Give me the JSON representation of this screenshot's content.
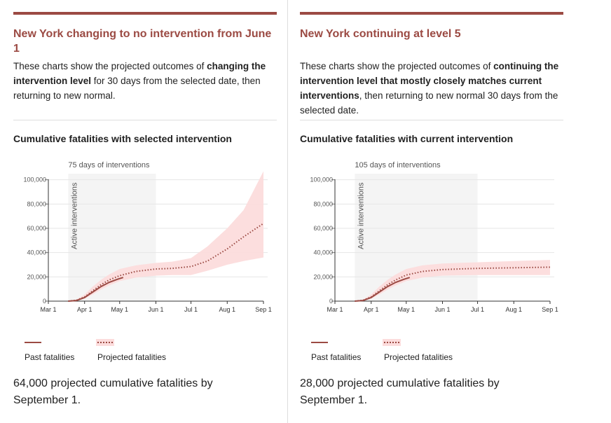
{
  "colors": {
    "accent": "#9b4a43",
    "band": "#fcdcdc",
    "active_shade": "#f4f4f4"
  },
  "panels": [
    {
      "title": "New York changing to no intervention from June 1",
      "desc": [
        {
          "t": "These charts show the projected outcomes of ",
          "b": false
        },
        {
          "t": "changing the intervention level",
          "b": true
        },
        {
          "t": " for 30 days from the selected date, then returning to new normal.",
          "b": false
        }
      ],
      "chart_title": "Cumulative fatalities with selected intervention",
      "days_label": "75 days of interventions",
      "active_label": "Active interventions",
      "legend_past": "Past fatalities",
      "legend_projected": "Projected fatalities",
      "summary": "64,000 projected cumulative fatalities by September 1."
    },
    {
      "title": "New York continuing at level 5",
      "desc": [
        {
          "t": "These charts show the projected outcomes of ",
          "b": false
        },
        {
          "t": "continuing the intervention level that mostly closely matches current interventions",
          "b": true
        },
        {
          "t": ", then returning to new normal 30 days from the selected date.",
          "b": false
        }
      ],
      "chart_title": "Cumulative fatalities with current intervention",
      "days_label": "105 days of interventions",
      "active_label": "Active interventions",
      "legend_past": "Past fatalities",
      "legend_projected": "Projected fatalities",
      "summary": "28,000 projected cumulative fatalities by September 1."
    }
  ],
  "chart_data": [
    {
      "type": "line",
      "title": "Cumulative fatalities with selected intervention",
      "x_ticks": [
        "Mar 1",
        "Apr 1",
        "May 1",
        "Jun 1",
        "Jul 1",
        "Aug 1",
        "Sep 1"
      ],
      "y_ticks": [
        "0",
        "20,000",
        "40,000",
        "60,000",
        "80,000",
        "100,000"
      ],
      "ylim": [
        0,
        105000
      ],
      "xlim": [
        "2020-03-01",
        "2020-09-01"
      ],
      "active_interventions": {
        "start": "2020-03-18",
        "end": "2020-06-01"
      },
      "series": [
        {
          "name": "Past fatalities",
          "style": "solid",
          "points": [
            [
              "2020-03-18",
              0
            ],
            [
              "2020-03-25",
              500
            ],
            [
              "2020-04-01",
              3000
            ],
            [
              "2020-04-08",
              7500
            ],
            [
              "2020-04-15",
              12000
            ],
            [
              "2020-04-22",
              15500
            ],
            [
              "2020-04-29",
              18000
            ],
            [
              "2020-05-04",
              19500
            ]
          ]
        },
        {
          "name": "Projected fatalities",
          "style": "dotted",
          "points": [
            [
              "2020-03-18",
              0
            ],
            [
              "2020-03-25",
              700
            ],
            [
              "2020-04-01",
              3500
            ],
            [
              "2020-04-08",
              8500
            ],
            [
              "2020-04-15",
              13500
            ],
            [
              "2020-04-22",
              17500
            ],
            [
              "2020-05-01",
              21000
            ],
            [
              "2020-05-15",
              24500
            ],
            [
              "2020-06-01",
              26500
            ],
            [
              "2020-06-15",
              27000
            ],
            [
              "2020-07-01",
              28500
            ],
            [
              "2020-07-15",
              33000
            ],
            [
              "2020-08-01",
              43000
            ],
            [
              "2020-08-15",
              53000
            ],
            [
              "2020-09-01",
              64000
            ]
          ],
          "lower": [
            [
              "2020-03-18",
              0
            ],
            [
              "2020-03-25",
              300
            ],
            [
              "2020-04-01",
              2000
            ],
            [
              "2020-04-08",
              5500
            ],
            [
              "2020-04-15",
              9500
            ],
            [
              "2020-04-22",
              13000
            ],
            [
              "2020-05-01",
              16500
            ],
            [
              "2020-05-15",
              19500
            ],
            [
              "2020-06-01",
              21000
            ],
            [
              "2020-06-15",
              21500
            ],
            [
              "2020-07-01",
              21500
            ],
            [
              "2020-07-15",
              25000
            ],
            [
              "2020-08-01",
              30000
            ],
            [
              "2020-08-15",
              33000
            ],
            [
              "2020-09-01",
              36000
            ]
          ],
          "upper": [
            [
              "2020-03-18",
              0
            ],
            [
              "2020-03-25",
              1200
            ],
            [
              "2020-04-01",
              5500
            ],
            [
              "2020-04-08",
              12000
            ],
            [
              "2020-04-15",
              17500
            ],
            [
              "2020-04-22",
              22000
            ],
            [
              "2020-05-01",
              26500
            ],
            [
              "2020-05-15",
              29500
            ],
            [
              "2020-06-01",
              31500
            ],
            [
              "2020-06-15",
              32500
            ],
            [
              "2020-07-01",
              35500
            ],
            [
              "2020-07-15",
              45000
            ],
            [
              "2020-08-01",
              60000
            ],
            [
              "2020-08-15",
              75000
            ],
            [
              "2020-09-01",
              107000
            ]
          ]
        }
      ]
    },
    {
      "type": "line",
      "title": "Cumulative fatalities with current intervention",
      "x_ticks": [
        "Mar 1",
        "Apr 1",
        "May 1",
        "Jun 1",
        "Jul 1",
        "Aug 1",
        "Sep 1"
      ],
      "y_ticks": [
        "0",
        "20,000",
        "40,000",
        "60,000",
        "80,000",
        "100,000"
      ],
      "ylim": [
        0,
        105000
      ],
      "xlim": [
        "2020-03-01",
        "2020-09-01"
      ],
      "active_interventions": {
        "start": "2020-03-18",
        "end": "2020-07-01"
      },
      "series": [
        {
          "name": "Past fatalities",
          "style": "solid",
          "points": [
            [
              "2020-03-18",
              0
            ],
            [
              "2020-03-25",
              500
            ],
            [
              "2020-04-01",
              3000
            ],
            [
              "2020-04-08",
              7500
            ],
            [
              "2020-04-15",
              12000
            ],
            [
              "2020-04-22",
              15500
            ],
            [
              "2020-04-29",
              18000
            ],
            [
              "2020-05-04",
              19500
            ]
          ]
        },
        {
          "name": "Projected fatalities",
          "style": "dotted",
          "points": [
            [
              "2020-03-18",
              0
            ],
            [
              "2020-03-25",
              700
            ],
            [
              "2020-04-01",
              3500
            ],
            [
              "2020-04-08",
              8500
            ],
            [
              "2020-04-15",
              13500
            ],
            [
              "2020-04-22",
              17500
            ],
            [
              "2020-05-01",
              21500
            ],
            [
              "2020-05-15",
              24500
            ],
            [
              "2020-06-01",
              26000
            ],
            [
              "2020-06-15",
              26500
            ],
            [
              "2020-07-01",
              27000
            ],
            [
              "2020-08-01",
              27500
            ],
            [
              "2020-09-01",
              28000
            ]
          ],
          "lower": [
            [
              "2020-03-18",
              0
            ],
            [
              "2020-03-25",
              300
            ],
            [
              "2020-04-01",
              2000
            ],
            [
              "2020-04-08",
              5500
            ],
            [
              "2020-04-15",
              9500
            ],
            [
              "2020-04-22",
              13000
            ],
            [
              "2020-05-01",
              16500
            ],
            [
              "2020-05-15",
              19500
            ],
            [
              "2020-06-01",
              21000
            ],
            [
              "2020-06-15",
              21300
            ],
            [
              "2020-07-01",
              21500
            ],
            [
              "2020-08-01",
              21500
            ],
            [
              "2020-09-01",
              21500
            ]
          ],
          "upper": [
            [
              "2020-03-18",
              0
            ],
            [
              "2020-03-25",
              1200
            ],
            [
              "2020-04-01",
              5500
            ],
            [
              "2020-04-08",
              12000
            ],
            [
              "2020-04-15",
              17500
            ],
            [
              "2020-04-22",
              22000
            ],
            [
              "2020-05-01",
              26500
            ],
            [
              "2020-05-15",
              29500
            ],
            [
              "2020-06-01",
              31000
            ],
            [
              "2020-06-15",
              31500
            ],
            [
              "2020-07-01",
              32000
            ],
            [
              "2020-08-01",
              33000
            ],
            [
              "2020-09-01",
              34000
            ]
          ]
        }
      ]
    }
  ]
}
